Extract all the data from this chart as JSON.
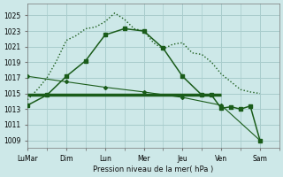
{
  "title": "Pression niveau de la mer( hPa )",
  "bg_color": "#cde8e8",
  "grid_color": "#a8cccc",
  "line_color_dark": "#1a5c1a",
  "ylim": [
    1008,
    1026.5
  ],
  "yticks": [
    1009,
    1011,
    1013,
    1015,
    1017,
    1019,
    1021,
    1023,
    1025
  ],
  "xlabels": [
    "LuMar",
    "Dim",
    "Lun",
    "Mer",
    "Jeu",
    "Ven",
    "Sam"
  ],
  "xtick_positions": [
    0,
    2,
    4,
    6,
    8,
    10,
    12
  ],
  "xlim": [
    0,
    13
  ],
  "dotted_x": [
    0,
    0.5,
    1,
    1.5,
    2,
    2.5,
    3,
    3.5,
    4,
    4.5,
    5,
    5.5,
    6,
    6.5,
    7,
    7.5,
    8,
    8.5,
    9,
    9.5,
    10,
    10.5,
    11,
    11.5,
    12
  ],
  "dotted_y": [
    1014.2,
    1015.5,
    1017.0,
    1019.2,
    1021.8,
    1022.4,
    1023.3,
    1023.5,
    1024.2,
    1025.3,
    1024.5,
    1023.3,
    1023.0,
    1021.5,
    1020.7,
    1021.3,
    1021.5,
    1020.2,
    1020.0,
    1019.0,
    1017.5,
    1016.5,
    1015.5,
    1015.2,
    1015.0
  ],
  "solid_x": [
    0,
    1,
    2,
    3,
    4,
    5,
    6,
    7,
    8,
    9,
    9.5,
    10,
    10.5,
    11,
    11.5,
    12
  ],
  "solid_y": [
    1013.5,
    1014.8,
    1017.2,
    1019.2,
    1022.5,
    1023.3,
    1023.0,
    1020.8,
    1017.2,
    1014.8,
    1014.8,
    1013.1,
    1013.3,
    1013.0,
    1013.4,
    1009.0
  ],
  "diag_x": [
    0,
    2,
    4,
    6,
    8,
    10,
    12
  ],
  "diag_y": [
    1017.2,
    1016.5,
    1015.8,
    1015.2,
    1014.5,
    1013.5,
    1009.0
  ],
  "hline_x": [
    0,
    10
  ],
  "hline_y": [
    1014.8,
    1014.8
  ]
}
